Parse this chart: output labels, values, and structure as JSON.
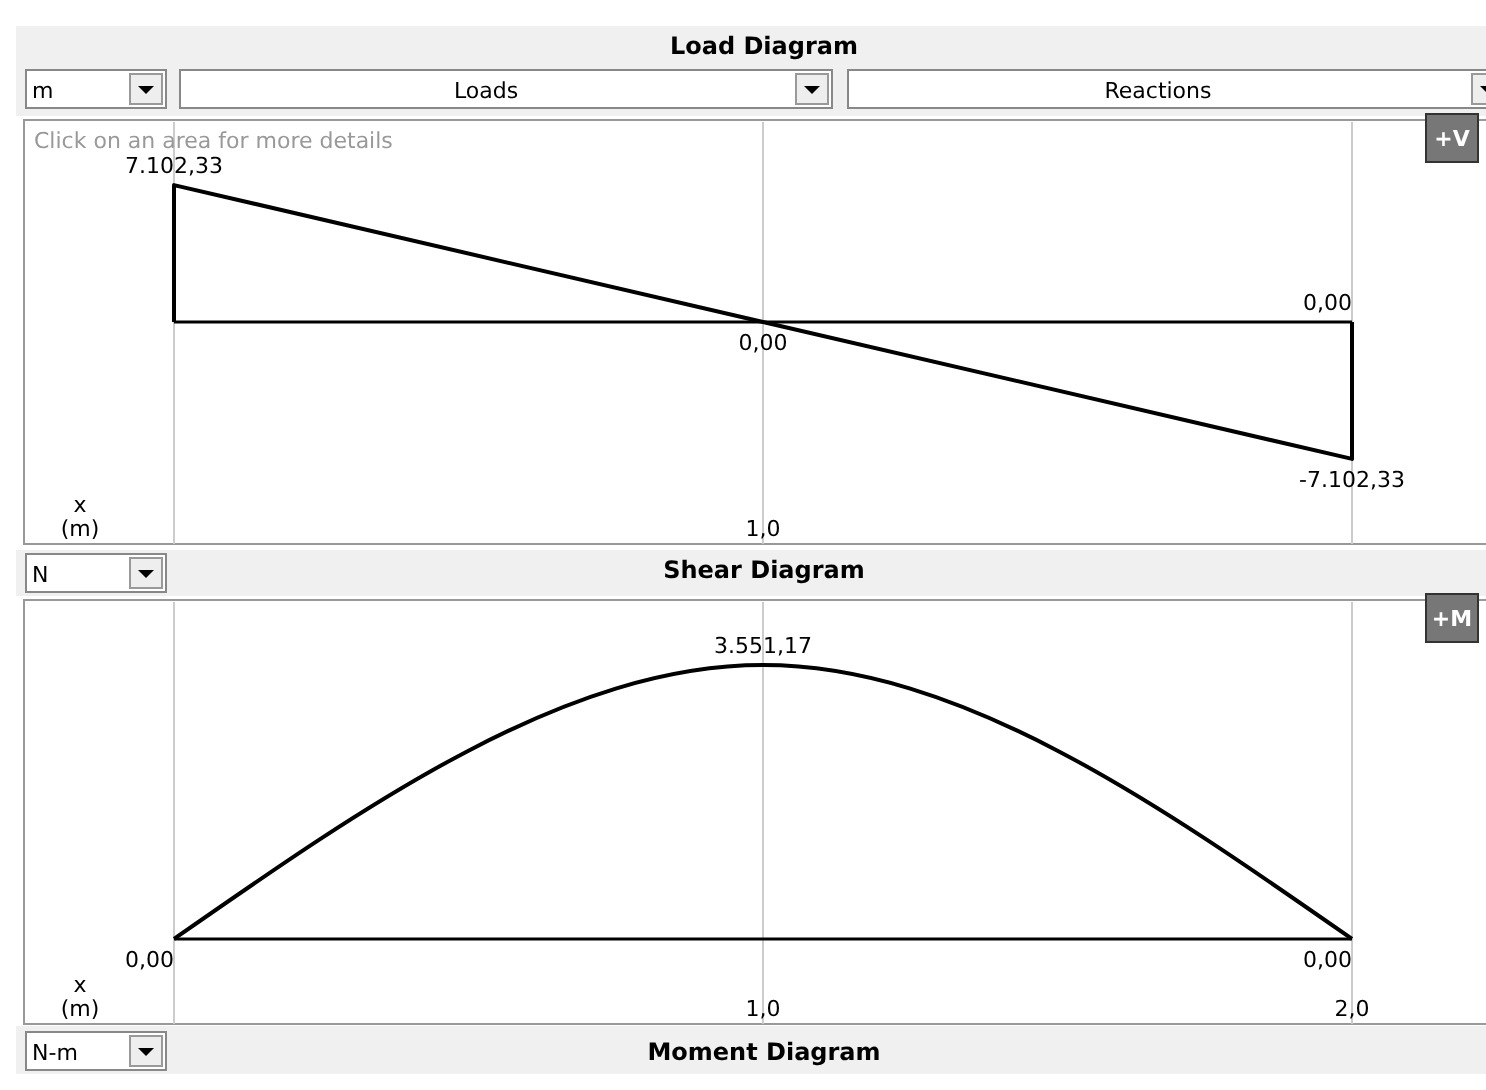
{
  "chart_data": [
    {
      "type": "line",
      "title": "Load Diagram",
      "xlabel": "x\n(m)",
      "x": [
        0,
        0,
        1,
        2,
        2
      ],
      "values": [
        0,
        7102.33,
        0,
        -7102.33,
        0
      ],
      "value_labels": [
        null,
        "7.102,33",
        "0,00",
        "-7.102,33",
        "0,00"
      ],
      "color": "#000000",
      "xlim": [
        0,
        2
      ],
      "xticks": [
        {
          "value": 0,
          "label": null
        },
        {
          "value": 1,
          "label": null
        },
        {
          "value": 2,
          "label": null
        }
      ],
      "tick_labels": false,
      "grid": "x",
      "marker": "none",
      "line_style": "solid",
      "annotations": [
        "m",
        "Loads",
        "Reactions",
        "Click on an area for more details",
        "+V",
        "1,0"
      ]
    },
    {
      "type": "line",
      "title": "Shear Diagram",
      "xlabel": "x\n(m)",
      "x": [
        0,
        1,
        2
      ],
      "values": [
        0,
        3551.17,
        0
      ],
      "value_labels": [
        "0,00",
        "3.551,17",
        "0,00"
      ],
      "color": "#000000",
      "xlim": [
        0,
        2
      ],
      "xticks": [
        {
          "value": 0,
          "label": null
        },
        {
          "value": 1,
          "label": "1,0"
        },
        {
          "value": 2,
          "label": "2,0"
        }
      ],
      "tick_labels": "x",
      "grid": "x",
      "marker": "none",
      "line_style": "solid",
      "annotations": [
        "N",
        "+M",
        "Moment Diagram",
        "N-m"
      ]
    }
  ]
}
